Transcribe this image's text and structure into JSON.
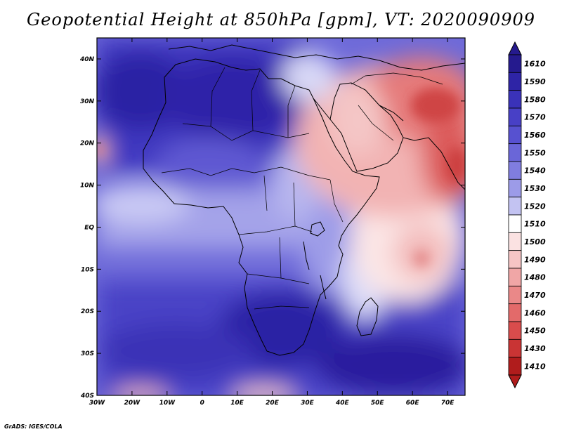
{
  "title": "Geopotential Height at 850hPa [gpm], VT: 2020090909",
  "footer": "GrADS: IGES/COLA",
  "colors": {
    "deep_blue": "#2a1d9e",
    "mid_blue": "#5a52d6",
    "light_blue": "#c9c9f4",
    "white": "#ffffff",
    "light_red": "#f2b8b8",
    "mid_red": "#e06a6a",
    "deep_red": "#b01c1c",
    "coast": "#000000"
  },
  "chart_data": {
    "type": "heatmap",
    "title": "Geopotential Height at 850hPa [gpm], VT: 2020090909",
    "variable": "Geopotential Height",
    "level": "850hPa",
    "units": "gpm",
    "valid_time": "2020090909",
    "x_ticks": [
      "30W",
      "20W",
      "10W",
      "0",
      "10E",
      "20E",
      "30E",
      "40E",
      "50E",
      "60E",
      "70E"
    ],
    "x_tick_values": [
      -30,
      -20,
      -10,
      0,
      10,
      20,
      30,
      40,
      50,
      60,
      70
    ],
    "y_ticks": [
      "40N",
      "30N",
      "20N",
      "10N",
      "EQ",
      "10S",
      "20S",
      "30S",
      "40S"
    ],
    "y_tick_values": [
      40,
      30,
      20,
      10,
      0,
      -10,
      -20,
      -30,
      -40
    ],
    "xlim": [
      -30,
      75
    ],
    "ylim": [
      -40,
      45
    ],
    "colorbar_levels": [
      1610,
      1590,
      1580,
      1570,
      1560,
      1550,
      1540,
      1530,
      1520,
      1510,
      1500,
      1490,
      1480,
      1470,
      1460,
      1450,
      1430,
      1410
    ],
    "colorbar_colors": [
      "#251a8e",
      "#2e24a6",
      "#3a32b9",
      "#4840c6",
      "#5751d0",
      "#6a66d8",
      "#807ddf",
      "#9c9be8",
      "#c3c3f2",
      "#ffffff",
      "#fbe2e2",
      "#f6c5c5",
      "#f0a6a6",
      "#ea8888",
      "#e36a6a",
      "#d94c4c",
      "#c93434",
      "#b01c1c"
    ]
  }
}
